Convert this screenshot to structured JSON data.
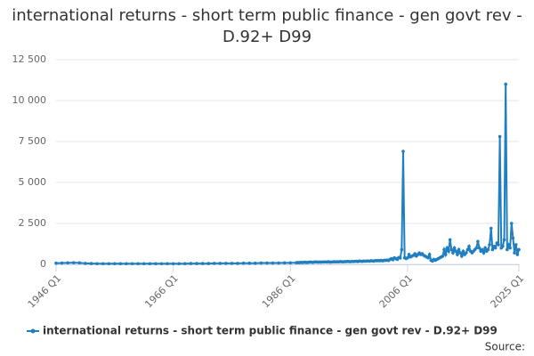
{
  "chart_data": {
    "type": "line",
    "title": "international returns - short term public finance - gen govt rev - D.92+ D99",
    "source": "Source:",
    "xlim": [
      1946,
      2025
    ],
    "xticks": [
      {
        "value": 1946,
        "label": "1946 Q1"
      },
      {
        "value": 1966,
        "label": "1966 Q1"
      },
      {
        "value": 1986,
        "label": "1986 Q1"
      },
      {
        "value": 2006,
        "label": "2006 Q1"
      },
      {
        "value": 2025,
        "label": "2025 Q1"
      }
    ],
    "ylim": [
      0,
      12500
    ],
    "yticks": [
      0,
      {
        "value": 2500,
        "label": "2 500"
      },
      {
        "value": 5000,
        "label": "5 000"
      },
      {
        "value": 7500,
        "label": "7 500"
      },
      {
        "value": 10000,
        "label": "10 000"
      },
      {
        "value": 12500,
        "label": "12 500"
      }
    ],
    "grid": true,
    "legend": "bottom",
    "x": [
      1946,
      1947,
      1948,
      1949,
      1950,
      1951,
      1952,
      1953,
      1954,
      1955,
      1956,
      1957,
      1958,
      1959,
      1960,
      1961,
      1962,
      1963,
      1964,
      1965,
      1966,
      1967,
      1968,
      1969,
      1970,
      1971,
      1972,
      1973,
      1974,
      1975,
      1976,
      1977,
      1978,
      1979,
      1980,
      1981,
      1982,
      1983,
      1984,
      1985,
      1986,
      1987,
      1987.25,
      1987.5,
      1987.75,
      1988,
      1988.25,
      1988.5,
      1988.75,
      1989,
      1989.25,
      1989.5,
      1989.75,
      1990,
      1990.25,
      1990.5,
      1990.75,
      1991,
      1991.25,
      1991.5,
      1991.75,
      1992,
      1992.25,
      1992.5,
      1992.75,
      1993,
      1993.25,
      1993.5,
      1993.75,
      1994,
      1994.25,
      1994.5,
      1994.75,
      1995,
      1995.25,
      1995.5,
      1995.75,
      1996,
      1996.25,
      1996.5,
      1996.75,
      1997,
      1997.25,
      1997.5,
      1997.75,
      1998,
      1998.25,
      1998.5,
      1998.75,
      1999,
      1999.25,
      1999.5,
      1999.75,
      2000,
      2000.25,
      2000.5,
      2000.75,
      2001,
      2001.25,
      2001.5,
      2001.75,
      2002,
      2002.25,
      2002.5,
      2002.75,
      2003,
      2003.25,
      2003.5,
      2003.75,
      2004,
      2004.25,
      2004.5,
      2004.75,
      2005,
      2005.25,
      2005.5,
      2005.75,
      2006,
      2006.25,
      2006.5,
      2006.75,
      2007,
      2007.25,
      2007.5,
      2007.75,
      2008,
      2008.25,
      2008.5,
      2008.75,
      2009,
      2009.25,
      2009.5,
      2009.75,
      2010,
      2010.25,
      2010.5,
      2010.75,
      2011,
      2011.25,
      2011.5,
      2011.75,
      2012,
      2012.25,
      2012.5,
      2012.75,
      2013,
      2013.25,
      2013.5,
      2013.75,
      2014,
      2014.25,
      2014.5,
      2014.75,
      2015,
      2015.25,
      2015.5,
      2015.75,
      2016,
      2016.25,
      2016.5,
      2016.75,
      2017,
      2017.25,
      2017.5,
      2017.75,
      2018,
      2018.25,
      2018.5,
      2018.75,
      2019,
      2019.25,
      2019.5,
      2019.75,
      2020,
      2020.25,
      2020.5,
      2020.75,
      2021,
      2021.25,
      2021.5,
      2021.75,
      2022,
      2022.25,
      2022.5,
      2022.75,
      2023,
      2023.25,
      2023.5,
      2023.75,
      2024,
      2024.25,
      2024.5,
      2024.75,
      2025
    ],
    "series": [
      {
        "name": "international returns - short term public finance - gen govt rev - D.92+ D99",
        "color": "#1f7fc0",
        "values": [
          70,
          80,
          90,
          100,
          90,
          60,
          50,
          40,
          40,
          40,
          40,
          40,
          40,
          40,
          40,
          40,
          40,
          40,
          40,
          40,
          40,
          40,
          40,
          50,
          50,
          50,
          50,
          60,
          60,
          60,
          60,
          60,
          70,
          70,
          70,
          80,
          80,
          80,
          80,
          90,
          90,
          100,
          110,
          100,
          120,
          110,
          120,
          130,
          110,
          120,
          130,
          140,
          120,
          130,
          150,
          140,
          130,
          140,
          130,
          150,
          140,
          150,
          140,
          160,
          130,
          140,
          150,
          160,
          150,
          160,
          150,
          170,
          160,
          150,
          170,
          160,
          180,
          170,
          160,
          180,
          170,
          180,
          190,
          170,
          200,
          190,
          180,
          200,
          190,
          200,
          210,
          190,
          220,
          210,
          200,
          230,
          220,
          230,
          220,
          240,
          210,
          250,
          240,
          260,
          230,
          300,
          350,
          280,
          400,
          350,
          300,
          420,
          380,
          900,
          6900,
          400,
          350,
          400,
          600,
          450,
          500,
          550,
          650,
          500,
          600,
          700,
          600,
          650,
          550,
          500,
          450,
          400,
          600,
          250,
          200,
          300,
          250,
          300,
          350,
          400,
          450,
          500,
          900,
          600,
          1000,
          800,
          1500,
          900,
          700,
          1000,
          800,
          600,
          900,
          700,
          500,
          800,
          600,
          700,
          900,
          1100,
          800,
          700,
          800,
          900,
          1000,
          1400,
          1000,
          800,
          900,
          700,
          1000,
          800,
          900,
          1200,
          2200,
          900,
          1100,
          1000,
          1300,
          1200,
          7800,
          1000,
          1100,
          1500,
          11000,
          900,
          1200,
          1000,
          2500,
          1600,
          700,
          1200,
          600,
          900
        ]
      }
    ]
  }
}
